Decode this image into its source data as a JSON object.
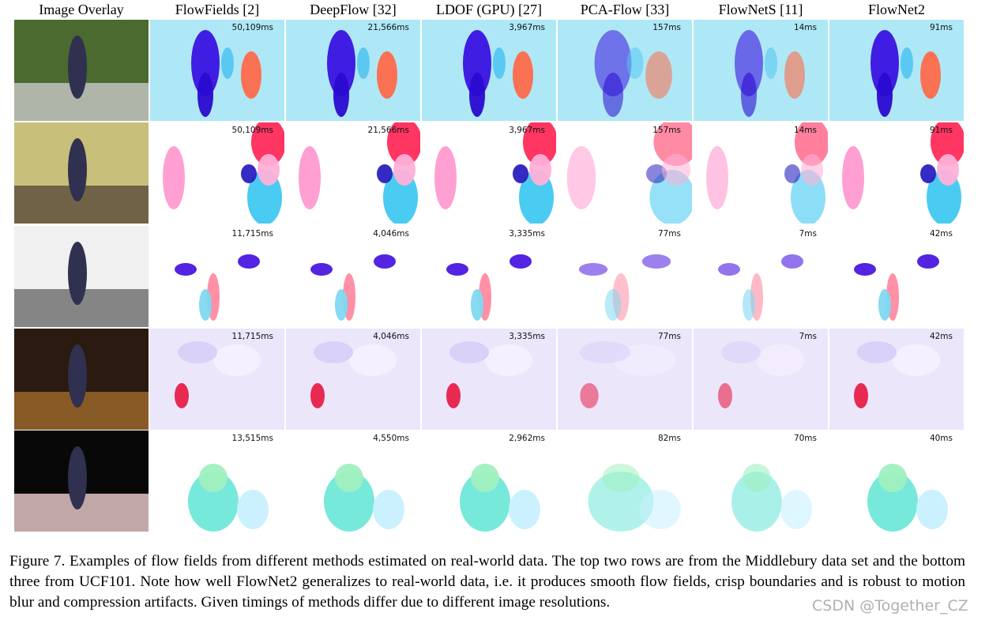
{
  "header": {
    "columns": [
      "Image Overlay",
      "FlowFields [2]",
      "DeepFlow [32]",
      "LDOF (GPU) [27]",
      "PCA-Flow [33]",
      "FlowNetS [11]",
      "FlowNet2"
    ]
  },
  "rows": [
    {
      "timings": [
        "50,109ms",
        "21,566ms",
        "3,967ms",
        "157ms",
        "14ms",
        "91ms"
      ]
    },
    {
      "timings": [
        "50,109ms",
        "21,566ms",
        "3,967ms",
        "157ms",
        "14ms",
        "91ms"
      ]
    },
    {
      "timings": [
        "11,715ms",
        "4,046ms",
        "3,335ms",
        "77ms",
        "7ms",
        "42ms"
      ]
    },
    {
      "timings": [
        "11,715ms",
        "4,046ms",
        "3,335ms",
        "77ms",
        "7ms",
        "42ms"
      ]
    },
    {
      "timings": [
        "13,515ms",
        "4,550ms",
        "2,962ms",
        "82ms",
        "70ms",
        "40ms"
      ]
    }
  ],
  "caption": "Figure 7. Examples of flow fields from different methods estimated on real-world data. The top two rows are from the Middlebury data set and the bottom three from UCF101. Note how well FlowNet2 generalizes to real-world data, i.e. it produces smooth flow fields, crisp boundaries and is robust to motion blur and compression artifacts. Given timings of methods differ due to different image resolutions.",
  "watermark": "CSDN @Together_CZ"
}
